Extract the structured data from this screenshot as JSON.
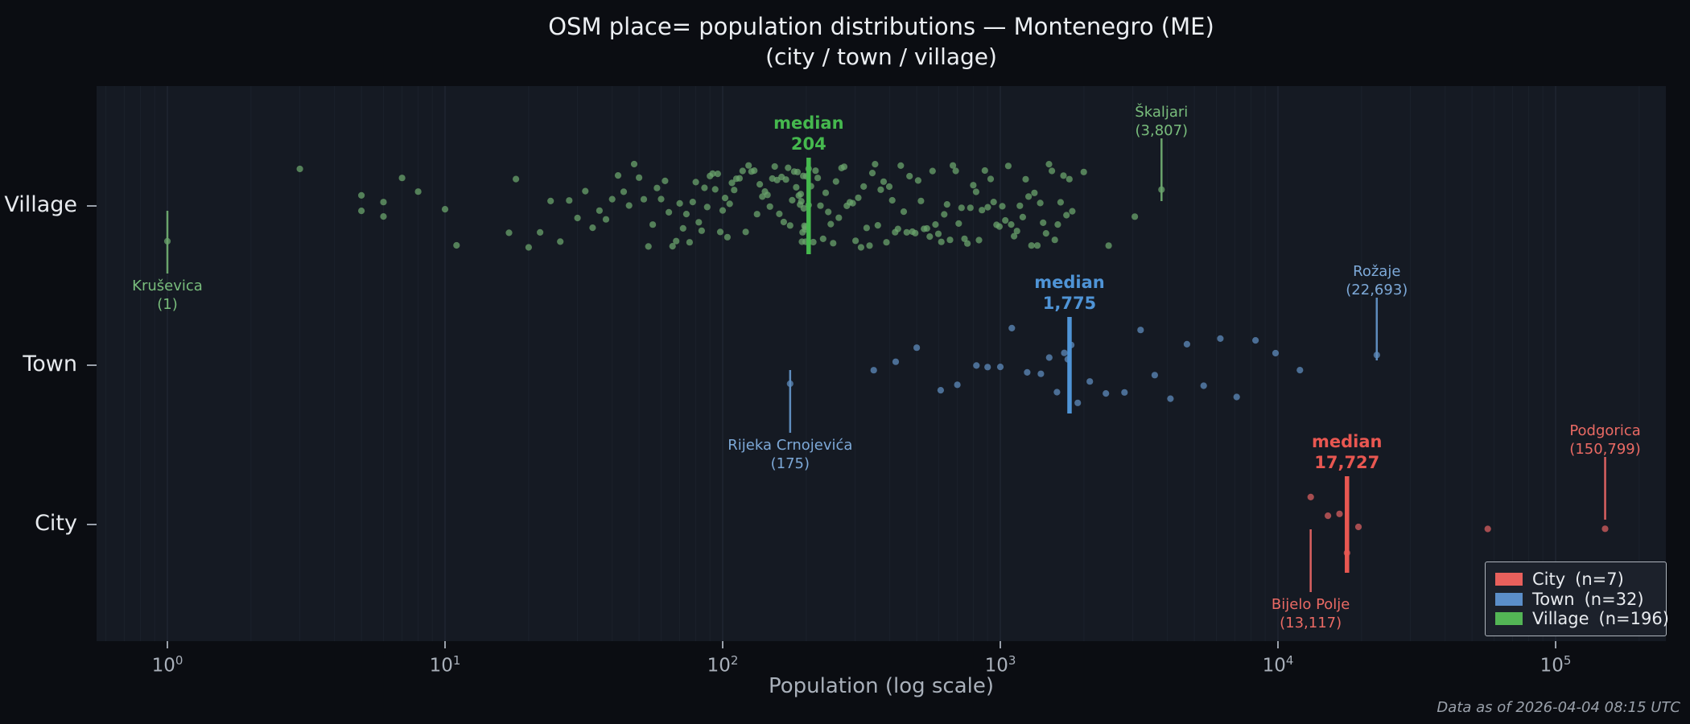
{
  "chart_data": {
    "type": "strip",
    "title": "OSM place= population distributions — Montenegro (ME)",
    "subtitle": "(city / town / village)",
    "xlabel": "Population (log scale)",
    "x_scale": "log",
    "x_range_pow10": [
      0,
      5
    ],
    "grid": "faint-vertical-log",
    "legend_position": "lower right",
    "median_word": "median",
    "footer": "Data as of 2026-04-04 08:15 UTC",
    "x_ticks": [
      {
        "base": "10",
        "exp": "0"
      },
      {
        "base": "10",
        "exp": "1"
      },
      {
        "base": "10",
        "exp": "2"
      },
      {
        "base": "10",
        "exp": "3"
      },
      {
        "base": "10",
        "exp": "4"
      },
      {
        "base": "10",
        "exp": "5"
      }
    ],
    "categories": [
      {
        "label": "Village",
        "n": 196,
        "color": "#6aa46c",
        "line_color": "#45b84e",
        "text_color": "#79bd7c",
        "median": 204,
        "median_label": "204",
        "annotations": [
          {
            "name": "Kruševica",
            "value": 1,
            "value_label": "(1)",
            "side": "below"
          },
          {
            "name": "Škaljari",
            "value": 3807,
            "value_label": "(3,807)",
            "side": "above"
          }
        ],
        "points": [
          1,
          3,
          5,
          5,
          6,
          6,
          7,
          8,
          10,
          11,
          17,
          18,
          20,
          22,
          24,
          26,
          28,
          30,
          32,
          34,
          36,
          38,
          40,
          42,
          44,
          46,
          48,
          50,
          52,
          54,
          56,
          58,
          60,
          62,
          64,
          66,
          68,
          70,
          72,
          74,
          76,
          78,
          80,
          82,
          84,
          86,
          88,
          90,
          92,
          94,
          96,
          98,
          100,
          102,
          104,
          106,
          108,
          110,
          112,
          115,
          118,
          121,
          124,
          127,
          130,
          133,
          136,
          139,
          142,
          145,
          148,
          151,
          154,
          157,
          160,
          163,
          166,
          169,
          172,
          175,
          178,
          181,
          184,
          186,
          188,
          190,
          191,
          192,
          193,
          194,
          195,
          196,
          197,
          198,
          199,
          199,
          200,
          204,
          204,
          208,
          212,
          216,
          220,
          225,
          230,
          235,
          240,
          245,
          250,
          256,
          262,
          268,
          274,
          280,
          287,
          294,
          301,
          308,
          315,
          322,
          330,
          338,
          346,
          354,
          362,
          371,
          380,
          389,
          398,
          408,
          418,
          428,
          438,
          449,
          460,
          471,
          482,
          494,
          506,
          518,
          531,
          544,
          557,
          570,
          584,
          598,
          613,
          628,
          643,
          659,
          675,
          691,
          708,
          725,
          743,
          761,
          780,
          799,
          818,
          838,
          859,
          880,
          901,
          923,
          946,
          969,
          993,
          1017,
          1042,
          1068,
          1094,
          1121,
          1148,
          1176,
          1205,
          1234,
          1264,
          1295,
          1327,
          1359,
          1392,
          1426,
          1461,
          1497,
          1534,
          1571,
          1610,
          1649,
          1689,
          1731,
          1773,
          1816,
          1998,
          2456,
          3050,
          3807
        ]
      },
      {
        "label": "Town",
        "n": 32,
        "color": "#5e8cbd",
        "line_color": "#4f94d6",
        "text_color": "#7da9d8",
        "median": 1775,
        "median_label": "1,775",
        "annotations": [
          {
            "name": "Rijeka Crnojevića",
            "value": 175,
            "value_label": "(175)",
            "side": "below"
          },
          {
            "name": "Rožaje",
            "value": 22693,
            "value_label": "(22,693)",
            "side": "above"
          }
        ],
        "points": [
          175,
          350,
          420,
          500,
          610,
          700,
          820,
          900,
          1000,
          1100,
          1250,
          1400,
          1500,
          1600,
          1700,
          1750,
          1800,
          1900,
          2100,
          2400,
          2800,
          3200,
          3600,
          4100,
          4700,
          5400,
          6200,
          7100,
          8300,
          9800,
          12000,
          22693
        ]
      },
      {
        "label": "City",
        "n": 7,
        "color": "#d96060",
        "line_color": "#e85751",
        "text_color": "#ea6a64",
        "median": 17727,
        "median_label": "17,727",
        "annotations": [
          {
            "name": "Bijelo Polje",
            "value": 13117,
            "value_label": "(13,117)",
            "side": "below"
          },
          {
            "name": "Podgorica",
            "value": 150799,
            "value_label": "(150,799)",
            "side": "above"
          }
        ],
        "points": [
          13117,
          15137,
          16657,
          17727,
          19489,
          56970,
          150799
        ]
      }
    ],
    "legend": [
      {
        "label": "City",
        "count": "(n=7)",
        "color": "#e8605c"
      },
      {
        "label": "Town",
        "count": "(n=32)",
        "color": "#5b8ec9"
      },
      {
        "label": "Village",
        "count": "(n=196)",
        "color": "#53b555"
      }
    ]
  }
}
